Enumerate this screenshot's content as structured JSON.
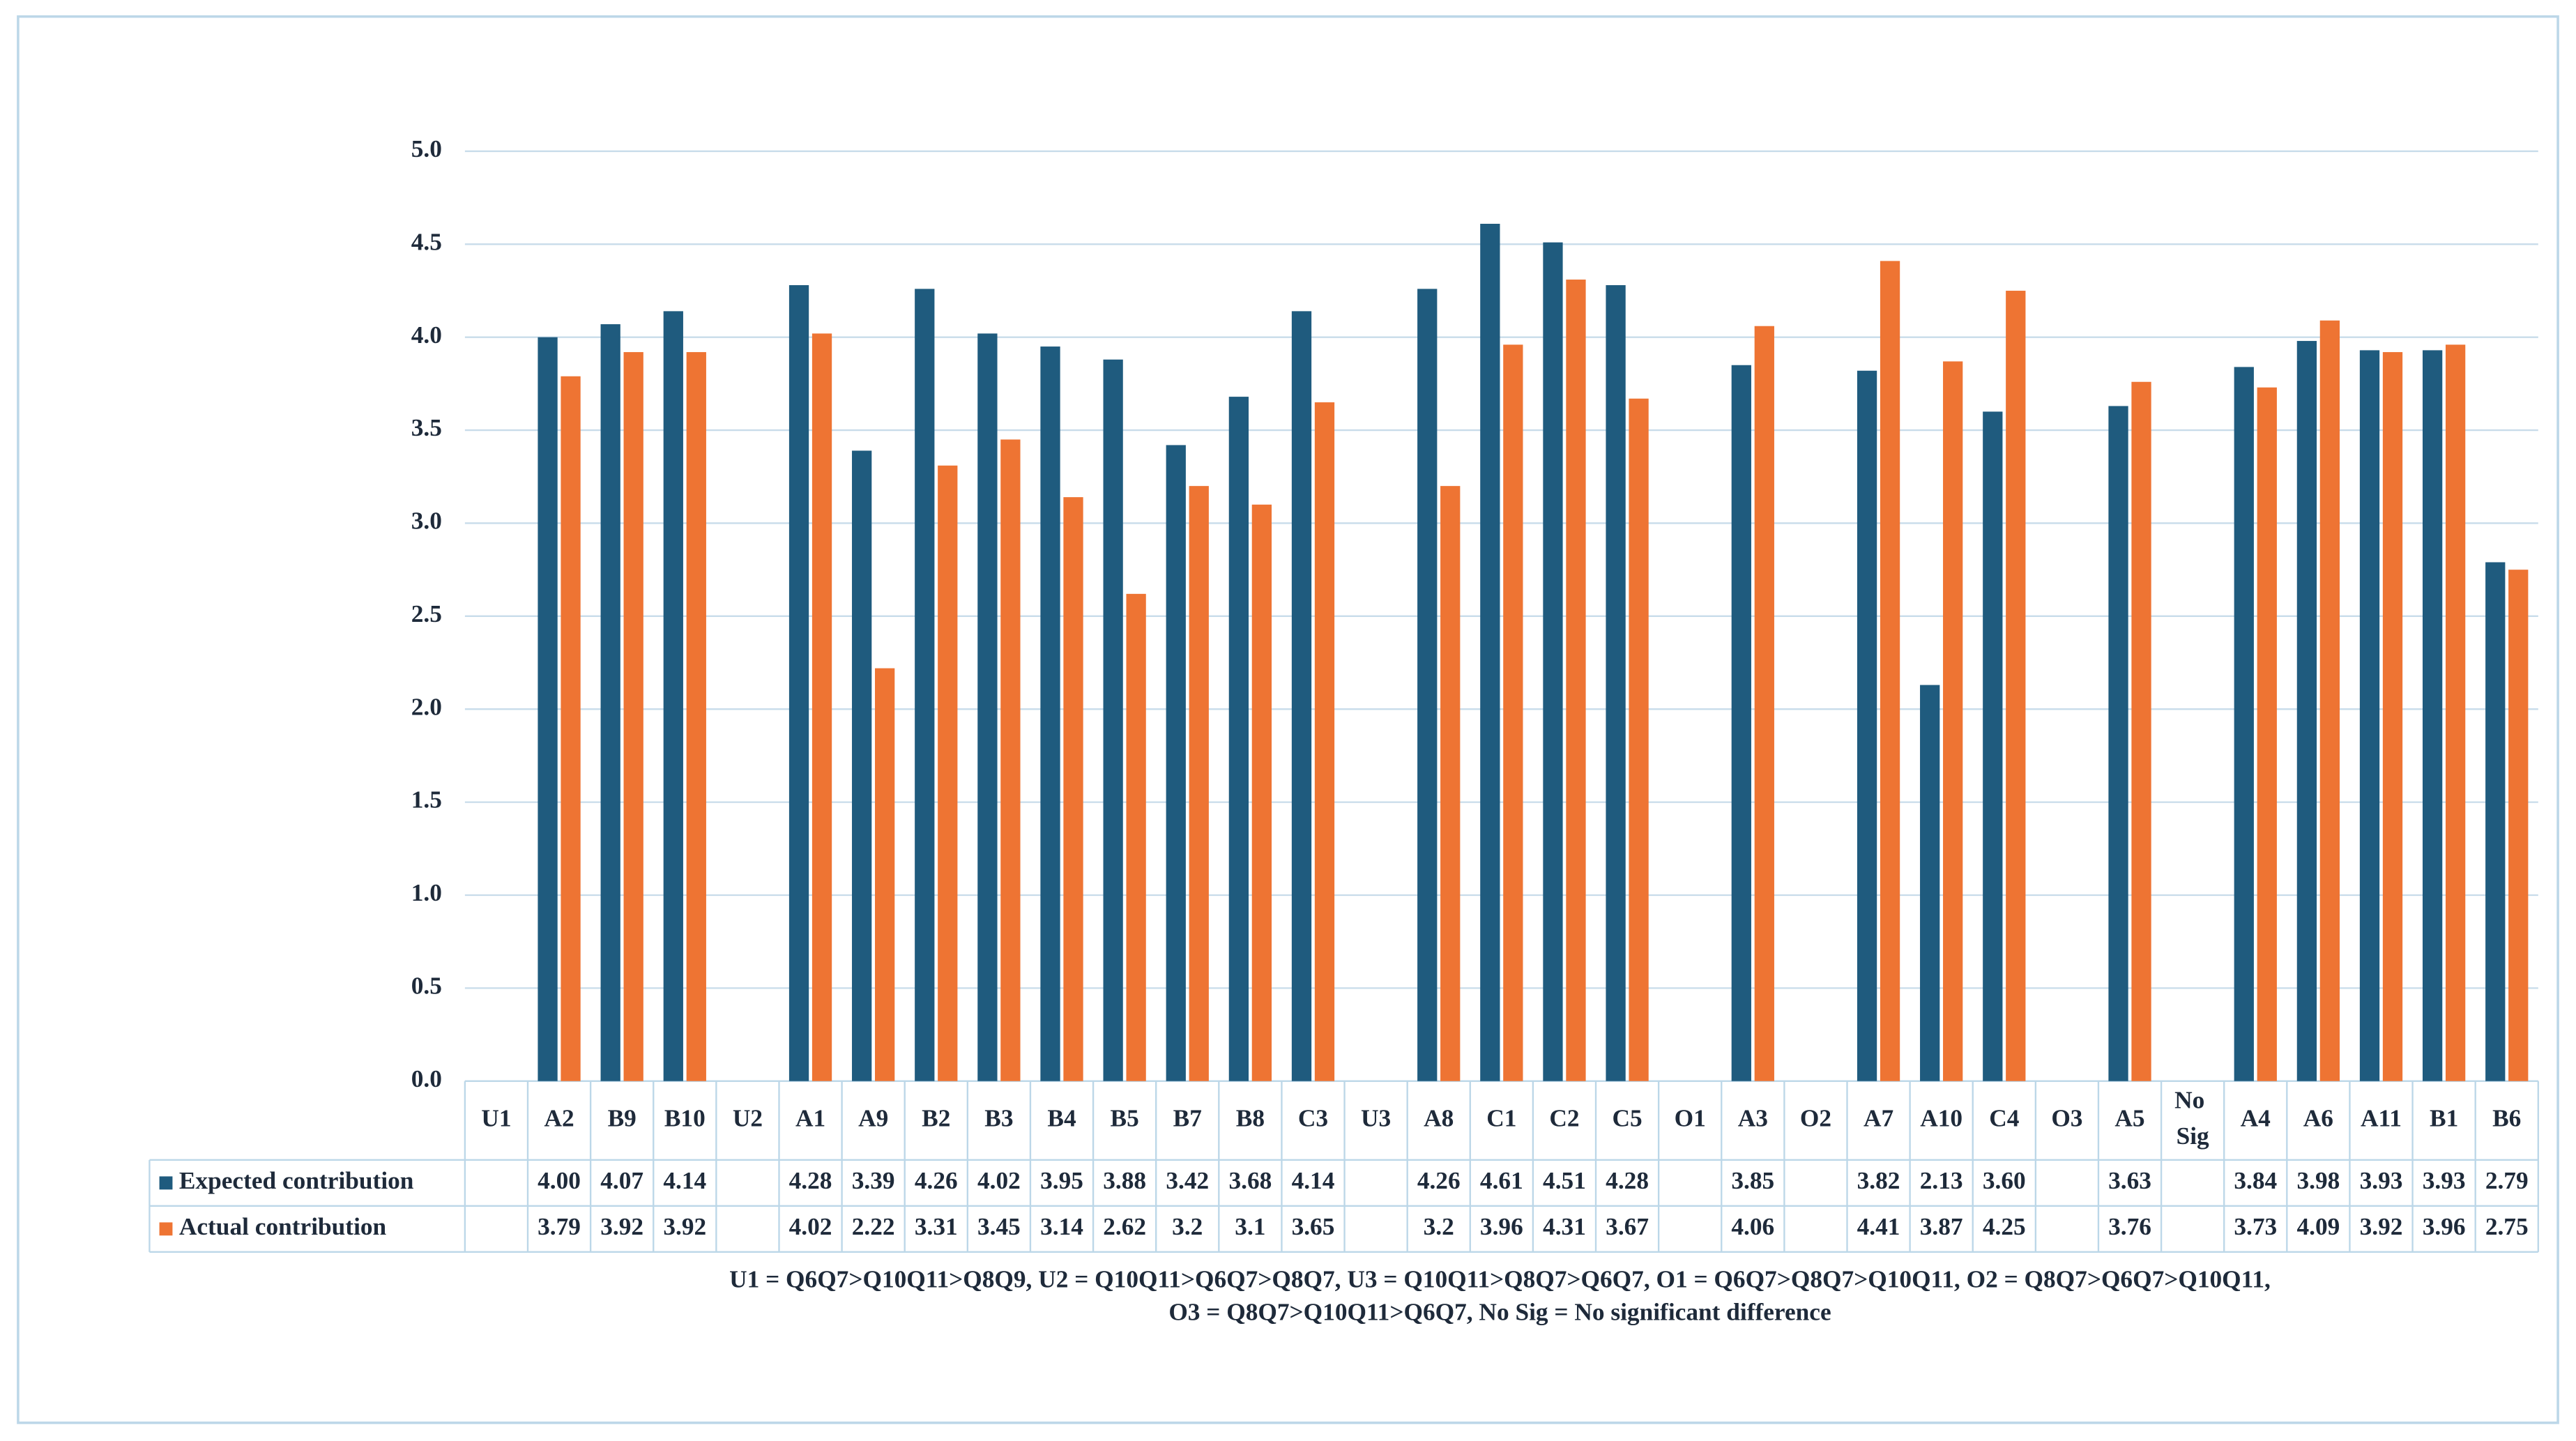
{
  "chart_data": {
    "type": "bar",
    "categories": [
      "U1",
      "A2",
      "B9",
      "B10",
      "U2",
      "A1",
      "A9",
      "B2",
      "B3",
      "B4",
      "B5",
      "B7",
      "B8",
      "C3",
      "U3",
      "A8",
      "C1",
      "C2",
      "C5",
      "O1",
      "A3",
      "O2",
      "A7",
      "A10",
      "C4",
      "O3",
      "A5",
      "No Sig",
      "A4",
      "A6",
      "A11",
      "B1",
      "B6"
    ],
    "series": [
      {
        "name": "Expected contribution",
        "color": "#1f5b7e",
        "values": [
          null,
          4.0,
          4.07,
          4.14,
          null,
          4.28,
          3.39,
          4.26,
          4.02,
          3.95,
          3.88,
          3.42,
          3.68,
          4.14,
          null,
          4.26,
          4.61,
          4.51,
          4.28,
          null,
          3.85,
          null,
          3.82,
          2.13,
          3.6,
          null,
          3.63,
          null,
          3.84,
          3.98,
          3.93,
          3.93,
          2.79
        ],
        "value_labels": [
          null,
          "4.00",
          "4.07",
          "4.14",
          null,
          "4.28",
          "3.39",
          "4.26",
          "4.02",
          "3.95",
          "3.88",
          "3.42",
          "3.68",
          "4.14",
          null,
          "4.26",
          "4.61",
          "4.51",
          "4.28",
          null,
          "3.85",
          null,
          "3.82",
          "2.13",
          "3.60",
          null,
          "3.63",
          null,
          "3.84",
          "3.98",
          "3.93",
          "3.93",
          "2.79"
        ]
      },
      {
        "name": "Actual contribution",
        "color": "#ee7433",
        "values": [
          null,
          3.79,
          3.92,
          3.92,
          null,
          4.02,
          2.22,
          3.31,
          3.45,
          3.14,
          2.62,
          3.2,
          3.1,
          3.65,
          null,
          3.2,
          3.96,
          4.31,
          3.67,
          null,
          4.06,
          null,
          4.41,
          3.87,
          4.25,
          null,
          3.76,
          null,
          3.73,
          4.09,
          3.92,
          3.96,
          2.75
        ],
        "value_labels": [
          null,
          "3.79",
          "3.92",
          "3.92",
          null,
          "4.02",
          "2.22",
          "3.31",
          "3.45",
          "3.14",
          "2.62",
          "3.2",
          "3.1",
          "3.65",
          null,
          "3.2",
          "3.96",
          "4.31",
          "3.67",
          null,
          "4.06",
          null,
          "4.41",
          "3.87",
          "4.25",
          null,
          "3.76",
          null,
          "3.73",
          "4.09",
          "3.92",
          "3.96",
          "2.75"
        ]
      }
    ],
    "ylim": [
      0,
      5
    ],
    "yticks": [
      {
        "value": 0,
        "label": "0.0"
      },
      {
        "value": 0.5,
        "label": "0.5"
      },
      {
        "value": 1,
        "label": "1.0"
      },
      {
        "value": 1.5,
        "label": "1.5"
      },
      {
        "value": 2,
        "label": "2.0"
      },
      {
        "value": 2.5,
        "label": "2.5"
      },
      {
        "value": 3,
        "label": "3.0"
      },
      {
        "value": 3.5,
        "label": "3.5"
      },
      {
        "value": 4,
        "label": "4.0"
      },
      {
        "value": 4.5,
        "label": "4.5"
      },
      {
        "value": 5,
        "label": "5.0"
      }
    ],
    "grid": true,
    "notes": [
      "U1 = Q6Q7>Q10Q11>Q8Q9, U2 = Q10Q11>Q6Q7>Q8Q7, U3 = Q10Q11>Q8Q7>Q6Q7, O1 = Q6Q7>Q8Q7>Q10Q11, O2 = Q8Q7>Q6Q7>Q10Q11,",
      "O3 = Q8Q7>Q10Q11>Q6Q7, No Sig = No significant difference"
    ]
  }
}
